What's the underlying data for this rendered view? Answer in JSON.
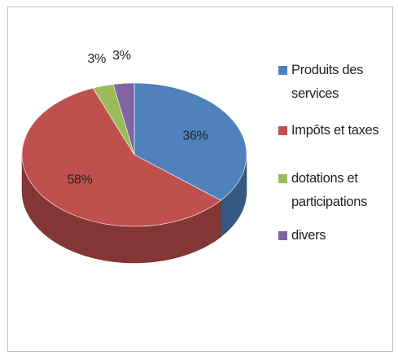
{
  "chart_data": {
    "type": "pie",
    "categories": [
      "Produits des services",
      "Impôts et taxes",
      "dotations et participations",
      "divers"
    ],
    "values": [
      36,
      58,
      3,
      3
    ],
    "value_labels": [
      "36%",
      "58%",
      "3%",
      "3%"
    ],
    "colors": [
      "#4f81bd",
      "#c0504d",
      "#9bbb59",
      "#8064a2"
    ],
    "legend": "right"
  }
}
